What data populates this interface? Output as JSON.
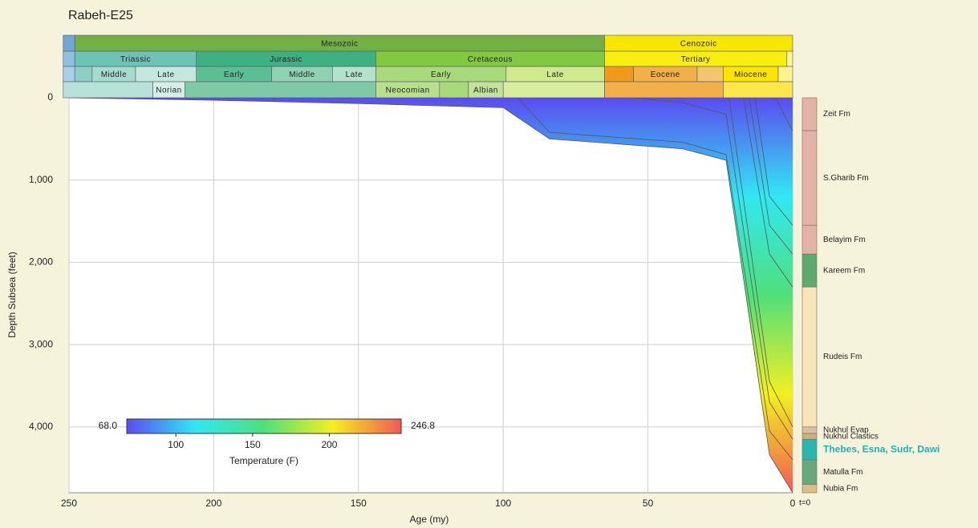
{
  "chart_data": {
    "type": "burial-history",
    "title": "Rabeh-E25",
    "x_label": "Age (my)",
    "y_label": "Depth Subsea (feet)",
    "xlim": [
      250,
      0
    ],
    "xticks": [
      250,
      200,
      150,
      100,
      50,
      0
    ],
    "ylim": [
      4800,
      0
    ],
    "yticks": [
      0,
      {
        "value": 1000,
        "label": "1,000"
      },
      {
        "value": 2000,
        "label": "2,000"
      },
      {
        "value": 3000,
        "label": "3,000"
      },
      {
        "value": 4000,
        "label": "4,000"
      }
    ],
    "grid": true,
    "line_color": "#555555",
    "present_label": "t=0",
    "timescale": [
      [
        {
          "label": null,
          "start": 252,
          "end": 248,
          "color": "#6fa8d6"
        },
        {
          "label": "Mesozoic",
          "start": 248,
          "end": 65,
          "color": "#72b043"
        },
        {
          "label": "Cenozoic",
          "start": 65,
          "end": 0,
          "color": "#f6e600"
        }
      ],
      [
        {
          "label": null,
          "start": 252,
          "end": 248,
          "color": "#8fc0e0"
        },
        {
          "label": "Triassic",
          "start": 248,
          "end": 206,
          "color": "#6cc3b6"
        },
        {
          "label": "Jurassic",
          "start": 206,
          "end": 144,
          "color": "#3eb183"
        },
        {
          "label": "Cretaceous",
          "start": 144,
          "end": 65,
          "color": "#82c93f"
        },
        {
          "label": "Tertiary",
          "start": 65,
          "end": 2,
          "color": "#f8ee10"
        },
        {
          "label": null,
          "start": 2,
          "end": 0,
          "color": "#fff59a"
        }
      ],
      [
        {
          "label": null,
          "start": 252,
          "end": 248,
          "color": "#a8d0ea"
        },
        {
          "label": null,
          "start": 248,
          "end": 242,
          "color": "#8ccfc4"
        },
        {
          "label": "Middle",
          "start": 242,
          "end": 227,
          "color": "#a6dccf"
        },
        {
          "label": "Late",
          "start": 227,
          "end": 206,
          "color": "#c4e8dc"
        },
        {
          "label": "Early",
          "start": 206,
          "end": 180,
          "color": "#5bbf93"
        },
        {
          "label": "Middle",
          "start": 180,
          "end": 159,
          "color": "#8fd1b3"
        },
        {
          "label": "Late",
          "start": 159,
          "end": 144,
          "color": "#b3e2cc"
        },
        {
          "label": "Early",
          "start": 144,
          "end": 99,
          "color": "#a8d97a"
        },
        {
          "label": "Late",
          "start": 99,
          "end": 65,
          "color": "#cfe98e"
        },
        {
          "label": null,
          "start": 65,
          "end": 55,
          "color": "#ef9a1c"
        },
        {
          "label": "Eocene",
          "start": 55,
          "end": 33,
          "color": "#f2b04a"
        },
        {
          "label": null,
          "start": 33,
          "end": 24,
          "color": "#f4c570"
        },
        {
          "label": "Miocene",
          "start": 24,
          "end": 5,
          "color": "#fde500"
        },
        {
          "label": null,
          "start": 5,
          "end": 0,
          "color": "#fff290"
        }
      ],
      [
        {
          "label": null,
          "start": 252,
          "end": 221,
          "color": "#b8e2d8"
        },
        {
          "label": "Norian",
          "start": 221,
          "end": 210,
          "color": "#d6efe6"
        },
        {
          "label": null,
          "start": 210,
          "end": 144,
          "color": "#7fcaa6"
        },
        {
          "label": "Neocomian",
          "start": 144,
          "end": 122,
          "color": "#b8df8c"
        },
        {
          "label": null,
          "start": 122,
          "end": 112,
          "color": "#a8d97a"
        },
        {
          "label": "Albian",
          "start": 112,
          "end": 100,
          "color": "#c2e49a"
        },
        {
          "label": null,
          "start": 100,
          "end": 65,
          "color": "#d8ee9e"
        },
        {
          "label": null,
          "start": 65,
          "end": 24,
          "color": "#f2b04a"
        },
        {
          "label": null,
          "start": 24,
          "end": 0,
          "color": "#fde84a"
        }
      ]
    ],
    "colorbar": {
      "label": "Temperature (F)",
      "min": {
        "value": 68,
        "label": "68.0"
      },
      "max": {
        "value": 246.8,
        "label": "246.8"
      },
      "ticks": [
        100,
        150,
        200
      ],
      "colors": [
        "#5a4cf0",
        "#30e8f2",
        "#4fe07a",
        "#f2f020",
        "#f25a55"
      ]
    },
    "series": [
      {
        "x": [
          250,
          200,
          150,
          100,
          84,
          38,
          23,
          8,
          0
        ],
        "values": [
          0,
          30,
          70,
          120,
          500,
          620,
          760,
          4340,
          4800
        ]
      },
      {
        "x": [
          95,
          84,
          38,
          23,
          8,
          0
        ],
        "values": [
          0,
          420,
          540,
          690,
          4050,
          4400
        ]
      },
      {
        "x": [
          55,
          38,
          23,
          8,
          0
        ],
        "values": [
          0,
          60,
          200,
          3700,
          4150
        ]
      },
      {
        "x": [
          22,
          8,
          0
        ],
        "values": [
          0,
          3450,
          4000
        ]
      },
      {
        "x": [
          17,
          8,
          0
        ],
        "values": [
          0,
          1900,
          2300
        ]
      },
      {
        "x": [
          15,
          8,
          0
        ],
        "values": [
          0,
          1550,
          1900
        ]
      },
      {
        "x": [
          13,
          8,
          0
        ],
        "values": [
          0,
          1200,
          1550
        ]
      },
      {
        "x": [
          6,
          0
        ],
        "values": [
          0,
          400
        ]
      }
    ],
    "formations": [
      {
        "name": "Zeit Fm",
        "top": 0,
        "base": 400,
        "color": "#e3b4a6"
      },
      {
        "name": "S.Gharib Fm",
        "top": 400,
        "base": 1550,
        "color": "#e3b4a6"
      },
      {
        "name": "Belayim Fm",
        "top": 1550,
        "base": 1900,
        "color": "#e3b4a6"
      },
      {
        "name": "Kareem Fm",
        "top": 1900,
        "base": 2300,
        "color": "#5fa86e"
      },
      {
        "name": "Rudeis Fm",
        "top": 2300,
        "base": 4000,
        "color": "#f7e6b8"
      },
      {
        "name": "Nukhul Evap",
        "top": 4000,
        "base": 4080,
        "color": "#d8c0a0"
      },
      {
        "name": "Nukhul Clastics",
        "top": 4080,
        "base": 4150,
        "color": "#c9b27c"
      },
      {
        "name": "Thebes, Esna, Sudr, Dawi",
        "top": 4150,
        "base": 4400,
        "color": "#2bb5b0"
      },
      {
        "name": "Matulla Fm",
        "top": 4400,
        "base": 4700,
        "color": "#6aa87a"
      },
      {
        "name": "Nubia Fm",
        "top": 4700,
        "base": 4800,
        "color": "#d9c08a"
      }
    ]
  }
}
